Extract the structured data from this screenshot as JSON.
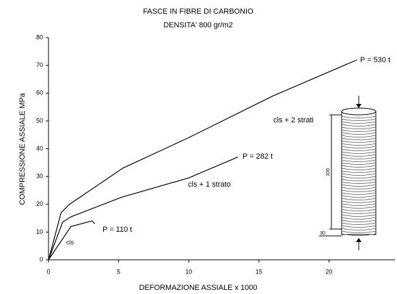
{
  "chart_data": {
    "type": "line",
    "title": "FASCE IN FIBRE DI CARBONIO",
    "subtitle": "DENSITA' 800 gr/m2",
    "x_label": "DEFORMAZIONE ASSIALE x 1000",
    "y_label": "COMPRESSIONE ASSIALE MPa",
    "xlim": [
      0,
      24.7
    ],
    "xticks": [
      0,
      5,
      10,
      15,
      20
    ],
    "ylim": [
      0,
      80
    ],
    "yticks": [
      0,
      10,
      20,
      30,
      40,
      50,
      60,
      70,
      80
    ],
    "series": [
      {
        "name": "cls",
        "color": "#000000",
        "x": [
          0,
          1.6,
          3.1,
          3.3
        ],
        "values": [
          0,
          12,
          14,
          13
        ]
      },
      {
        "name": "cls + 1 strato",
        "color": "#000000",
        "x": [
          0,
          1,
          1.6,
          5.2,
          10,
          13.5
        ],
        "values": [
          0,
          13.5,
          15.5,
          22.5,
          29.5,
          37
        ]
      },
      {
        "name": "cls + 2 strati",
        "color": "#000000",
        "x": [
          0,
          0.9,
          1.5,
          5.3,
          10,
          16,
          22
        ],
        "values": [
          0,
          17,
          20,
          33,
          44,
          59,
          72
        ]
      }
    ],
    "annotations": [
      "P = 110 t",
      "P = 282 t",
      "P = 530 t"
    ],
    "figure_labels": [
      "100",
      "30"
    ]
  }
}
